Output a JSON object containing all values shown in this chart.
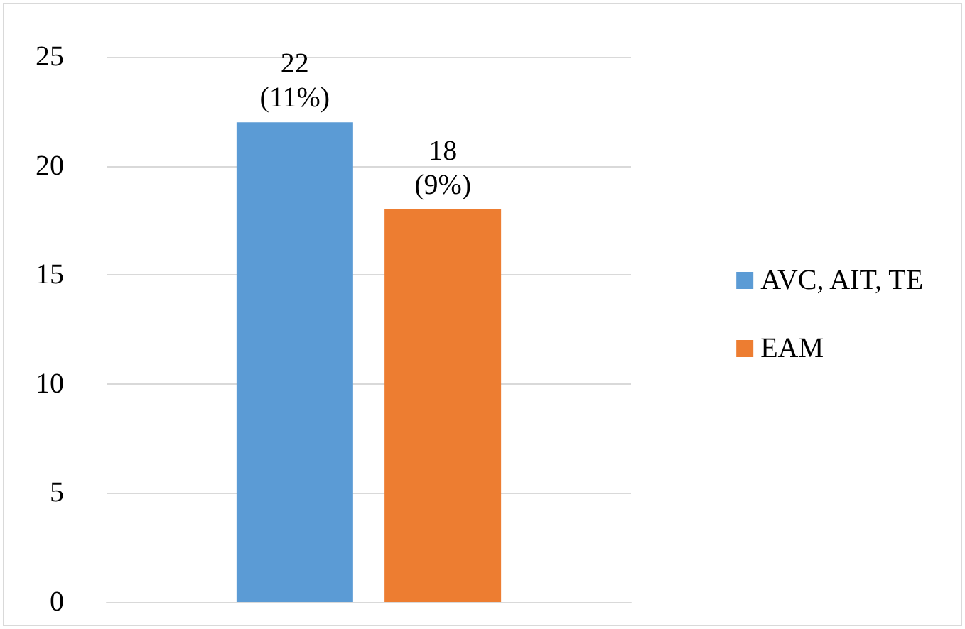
{
  "chart_data": {
    "type": "bar",
    "categories": [
      null
    ],
    "series": [
      {
        "name": "AVC, AIT, TE",
        "color": "#5b9bd5",
        "values": [
          22
        ],
        "value_labels": [
          "22\n(11%)"
        ]
      },
      {
        "name": "EAM",
        "color": "#ed7d31",
        "values": [
          18
        ],
        "value_labels": [
          "18\n(9%)"
        ]
      }
    ],
    "ylim": [
      0,
      25
    ],
    "yticks": [
      0,
      5,
      10,
      15,
      20,
      25
    ],
    "grid": "y",
    "legend": "right"
  }
}
